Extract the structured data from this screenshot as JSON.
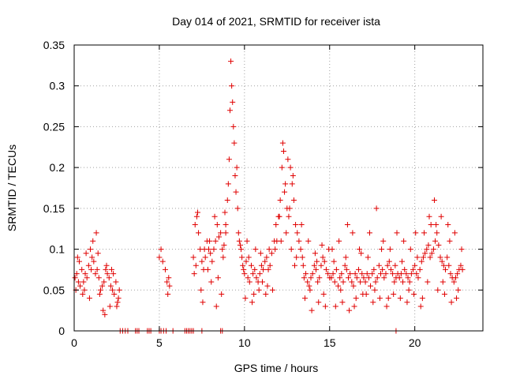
{
  "chart_data": {
    "type": "scatter",
    "title": "Day 014 of 2021, SRMTID for receiver ista",
    "xlabel": "GPS time / hours",
    "ylabel": "SRMTID / TECUs",
    "xlim": [
      0,
      24
    ],
    "ylim": [
      0,
      0.35
    ],
    "x_ticks": [
      0,
      5,
      10,
      15,
      20
    ],
    "x_tick_labels": [
      "0",
      "5",
      "10",
      "15",
      "20"
    ],
    "y_ticks": [
      0,
      0.05,
      0.1,
      0.15,
      0.2,
      0.25,
      0.3,
      0.35
    ],
    "y_tick_labels": [
      "0",
      "0.05",
      "0.1",
      "0.15",
      "0.2",
      "0.25",
      "0.3",
      "0.35"
    ],
    "grid": true,
    "legend": "none",
    "marker": "plus",
    "color": "#e00000",
    "series": [
      {
        "x": [
          0.05,
          0.15,
          0.25,
          0.35,
          0.45,
          0.55,
          0.65,
          0.75,
          0.85,
          0.95,
          1.05,
          1.15,
          1.25,
          1.35,
          1.45,
          1.55,
          1.65,
          1.75,
          1.85,
          1.95,
          2.05,
          2.15,
          2.25,
          2.35,
          2.45,
          2.55,
          2.65,
          0.1,
          0.3,
          0.5,
          0.7,
          0.9,
          1.1,
          1.3,
          1.5,
          1.7,
          1.9,
          2.1,
          2.3,
          2.5,
          0.2,
          0.6,
          1.0,
          1.4,
          1.8,
          2.2,
          2.6,
          5.0,
          5.1,
          5.2,
          5.35,
          5.45,
          5.55,
          5.6,
          5.5,
          7.0,
          7.1,
          7.2,
          7.3,
          7.4,
          7.5,
          7.6,
          7.7,
          7.8,
          7.9,
          8.0,
          8.1,
          8.2,
          8.3,
          8.4,
          8.5,
          8.6,
          8.7,
          8.8,
          8.9,
          7.05,
          7.25,
          7.45,
          7.65,
          7.85,
          8.05,
          8.25,
          8.45,
          8.65,
          8.85,
          7.15,
          7.55,
          7.95,
          8.35,
          8.75,
          8.9,
          9.0,
          9.05,
          9.1,
          9.15,
          9.2,
          9.25,
          9.3,
          9.35,
          9.4,
          9.45,
          9.5,
          9.55,
          9.6,
          9.65,
          9.7,
          9.75,
          9.8,
          9.85,
          9.9,
          9.95,
          10.0,
          10.1,
          10.2,
          10.3,
          10.4,
          10.5,
          10.6,
          10.7,
          10.8,
          10.9,
          11.0,
          11.1,
          11.2,
          11.3,
          11.4,
          11.5,
          11.6,
          10.05,
          10.25,
          10.45,
          10.65,
          10.85,
          11.05,
          11.25,
          11.45,
          11.65,
          10.15,
          10.55,
          10.95,
          11.35,
          11.75,
          11.8,
          11.9,
          12.0,
          12.1,
          12.2,
          12.3,
          12.4,
          12.5,
          12.6,
          12.7,
          12.8,
          12.9,
          13.0,
          13.1,
          13.2,
          11.85,
          12.05,
          12.25,
          12.45,
          12.65,
          12.85,
          13.05,
          12.15,
          12.35,
          12.55,
          12.75,
          12.95,
          13.3,
          13.4,
          13.5,
          13.6,
          13.7,
          13.8,
          13.9,
          14.0,
          14.1,
          14.2,
          14.3,
          14.4,
          14.5,
          14.6,
          14.7,
          14.8,
          14.9,
          15.0,
          13.35,
          13.55,
          13.75,
          13.95,
          14.15,
          14.35,
          14.55,
          14.75,
          14.95,
          13.45,
          13.85,
          14.25,
          14.65,
          15.1,
          15.2,
          15.3,
          15.4,
          15.5,
          15.6,
          15.7,
          15.8,
          15.9,
          16.0,
          16.1,
          16.2,
          16.3,
          16.4,
          16.5,
          16.6,
          16.7,
          16.8,
          16.9,
          17.0,
          15.15,
          15.35,
          15.55,
          15.75,
          15.95,
          16.15,
          16.35,
          16.55,
          16.75,
          16.95,
          15.25,
          15.65,
          16.05,
          16.45,
          16.85,
          17.1,
          17.2,
          17.3,
          17.4,
          17.5,
          17.6,
          17.7,
          17.8,
          17.9,
          18.0,
          18.1,
          18.2,
          18.3,
          18.4,
          18.5,
          18.6,
          18.7,
          18.8,
          18.9,
          19.0,
          17.15,
          17.35,
          17.55,
          17.75,
          17.95,
          18.15,
          18.35,
          18.55,
          18.75,
          18.95,
          17.25,
          17.65,
          18.05,
          18.45,
          18.85,
          19.1,
          19.2,
          19.3,
          19.4,
          19.5,
          19.6,
          19.7,
          19.8,
          19.9,
          20.0,
          20.1,
          20.2,
          20.3,
          20.4,
          20.5,
          20.6,
          20.7,
          20.8,
          20.9,
          21.0,
          19.15,
          19.35,
          19.55,
          19.75,
          19.95,
          20.15,
          20.35,
          20.55,
          20.75,
          20.95,
          19.25,
          19.65,
          20.05,
          20.45,
          20.85,
          21.1,
          21.2,
          21.3,
          21.4,
          21.5,
          21.6,
          21.7,
          21.8,
          21.9,
          22.0,
          22.1,
          22.2,
          22.3,
          22.4,
          22.5,
          22.6,
          22.7,
          22.8,
          21.15,
          21.35,
          21.55,
          21.75,
          21.95,
          22.15,
          22.35,
          22.55,
          22.75,
          21.25,
          21.65,
          22.05,
          22.45,
          2.7,
          2.85,
          3.0,
          3.15,
          3.6,
          3.7,
          3.8,
          4.3,
          4.4,
          4.5,
          5.0,
          5.1,
          5.25,
          5.4,
          5.8,
          6.5,
          6.6,
          6.7,
          6.8,
          6.9,
          7.0,
          7.5,
          8.6,
          8.7,
          18.9
        ],
        "y": [
          0.065,
          0.07,
          0.06,
          0.055,
          0.075,
          0.06,
          0.07,
          0.065,
          0.08,
          0.1,
          0.09,
          0.085,
          0.07,
          0.075,
          0.065,
          0.05,
          0.055,
          0.06,
          0.075,
          0.07,
          0.065,
          0.055,
          0.05,
          0.045,
          0.06,
          0.035,
          0.05,
          0.05,
          0.085,
          0.045,
          0.095,
          0.04,
          0.11,
          0.12,
          0.045,
          0.025,
          0.08,
          0.03,
          0.07,
          0.03,
          0.09,
          0.05,
          0.075,
          0.095,
          0.02,
          0.075,
          0.04,
          0.09,
          0.1,
          0.085,
          0.075,
          0.06,
          0.065,
          0.055,
          0.045,
          0.09,
          0.13,
          0.14,
          0.12,
          0.1,
          0.085,
          0.075,
          0.09,
          0.11,
          0.1,
          0.095,
          0.085,
          0.1,
          0.11,
          0.13,
          0.115,
          0.12,
          0.1,
          0.105,
          0.12,
          0.07,
          0.145,
          0.05,
          0.1,
          0.075,
          0.06,
          0.14,
          0.065,
          0.045,
          0.145,
          0.08,
          0.035,
          0.11,
          0.03,
          0.09,
          0.13,
          0.16,
          0.18,
          0.21,
          0.27,
          0.33,
          0.3,
          0.28,
          0.25,
          0.23,
          0.19,
          0.17,
          0.2,
          0.15,
          0.12,
          0.11,
          0.105,
          0.1,
          0.09,
          0.08,
          0.075,
          0.07,
          0.085,
          0.065,
          0.06,
          0.08,
          0.07,
          0.075,
          0.065,
          0.06,
          0.07,
          0.08,
          0.075,
          0.085,
          0.09,
          0.075,
          0.08,
          0.095,
          0.04,
          0.09,
          0.035,
          0.1,
          0.05,
          0.06,
          0.045,
          0.1,
          0.05,
          0.11,
          0.045,
          0.095,
          0.055,
          0.11,
          0.1,
          0.11,
          0.14,
          0.16,
          0.2,
          0.22,
          0.18,
          0.15,
          0.14,
          0.2,
          0.18,
          0.16,
          0.13,
          0.12,
          0.11,
          0.13,
          0.14,
          0.23,
          0.12,
          0.15,
          0.19,
          0.09,
          0.11,
          0.17,
          0.21,
          0.1,
          0.08,
          0.1,
          0.09,
          0.065,
          0.07,
          0.06,
          0.055,
          0.065,
          0.07,
          0.08,
          0.075,
          0.06,
          0.065,
          0.08,
          0.09,
          0.085,
          0.075,
          0.07,
          0.065,
          0.13,
          0.04,
          0.11,
          0.025,
          0.095,
          0.035,
          0.105,
          0.03,
          0.1,
          0.08,
          0.05,
          0.085,
          0.045,
          0.065,
          0.07,
          0.06,
          0.075,
          0.055,
          0.065,
          0.07,
          0.06,
          0.08,
          0.075,
          0.065,
          0.07,
          0.06,
          0.055,
          0.07,
          0.065,
          0.075,
          0.06,
          0.07,
          0.065,
          0.1,
          0.03,
          0.11,
          0.035,
          0.09,
          0.025,
          0.12,
          0.04,
          0.1,
          0.045,
          0.085,
          0.05,
          0.13,
          0.03,
          0.095,
          0.06,
          0.07,
          0.065,
          0.055,
          0.07,
          0.075,
          0.06,
          0.065,
          0.08,
          0.07,
          0.075,
          0.065,
          0.07,
          0.08,
          0.085,
          0.075,
          0.07,
          0.06,
          0.065,
          0.07,
          0.045,
          0.12,
          0.035,
          0.15,
          0.04,
          0.11,
          0.03,
          0.1,
          0.045,
          0.12,
          0.09,
          0.05,
          0.1,
          0.04,
          0.08,
          0.065,
          0.07,
          0.06,
          0.075,
          0.07,
          0.065,
          0.06,
          0.07,
          0.075,
          0.08,
          0.07,
          0.065,
          0.075,
          0.085,
          0.09,
          0.095,
          0.1,
          0.105,
          0.09,
          0.095,
          0.04,
          0.11,
          0.035,
          0.1,
          0.045,
          0.09,
          0.03,
          0.12,
          0.06,
          0.13,
          0.085,
          0.05,
          0.12,
          0.04,
          0.14,
          0.1,
          0.11,
          0.12,
          0.105,
          0.09,
          0.085,
          0.08,
          0.075,
          0.09,
          0.08,
          0.07,
          0.065,
          0.06,
          0.065,
          0.07,
          0.075,
          0.08,
          0.075,
          0.16,
          0.05,
          0.14,
          0.045,
          0.13,
          0.035,
          0.12,
          0.05,
          0.1,
          0.13,
          0.06,
          0.11,
          0.04,
          0,
          0,
          0,
          0,
          0,
          0,
          0,
          0,
          0,
          0,
          0,
          0,
          0,
          0,
          0,
          0,
          0,
          0,
          0,
          0,
          0,
          0,
          0,
          0,
          0
        ]
      }
    ]
  }
}
